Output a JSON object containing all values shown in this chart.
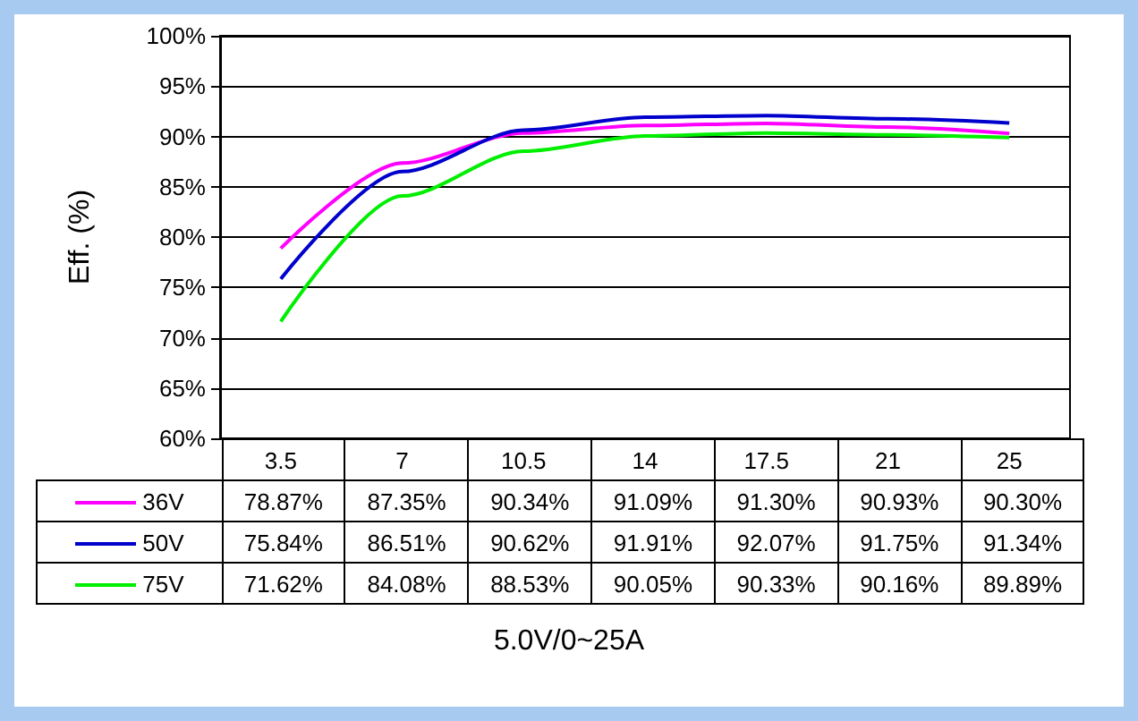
{
  "chart_data": {
    "type": "line",
    "annotations": [
      "5.0V/0~25A"
    ],
    "ylabel": "Eff. (%)",
    "categories": [
      "3.5",
      "7",
      "10.5",
      "14",
      "17.5",
      "21",
      "25"
    ],
    "series": [
      {
        "name": "36V",
        "color": "#ff00ff",
        "values": [
          78.87,
          87.35,
          90.34,
          91.09,
          91.3,
          90.93,
          90.3
        ],
        "value_labels": [
          "78.87%",
          "87.35%",
          "90.34%",
          "91.09%",
          "91.30%",
          "90.93%",
          "90.30%"
        ]
      },
      {
        "name": "50V",
        "color": "#0000cc",
        "values": [
          75.84,
          86.51,
          90.62,
          91.91,
          92.07,
          91.75,
          91.34
        ],
        "value_labels": [
          "75.84%",
          "86.51%",
          "90.62%",
          "91.91%",
          "92.07%",
          "91.75%",
          "91.34%"
        ]
      },
      {
        "name": "75V",
        "color": "#00ee00",
        "values": [
          71.62,
          84.08,
          88.53,
          90.05,
          90.33,
          90.16,
          89.89
        ],
        "value_labels": [
          "71.62%",
          "84.08%",
          "88.53%",
          "90.05%",
          "90.33%",
          "90.16%",
          "89.89%"
        ]
      }
    ],
    "ylim": [
      60,
      100
    ],
    "yticks": [
      {
        "value": 60,
        "label": "60%"
      },
      {
        "value": 65,
        "label": "65%"
      },
      {
        "value": 70,
        "label": "70%"
      },
      {
        "value": 75,
        "label": "75%"
      },
      {
        "value": 80,
        "label": "80%"
      },
      {
        "value": 85,
        "label": "85%"
      },
      {
        "value": 90,
        "label": "90%"
      },
      {
        "value": 95,
        "label": "95%"
      },
      {
        "value": 100,
        "label": "100%"
      }
    ],
    "grid": "y",
    "legend": "bottom left",
    "marker": "none",
    "line_style": "solid"
  }
}
